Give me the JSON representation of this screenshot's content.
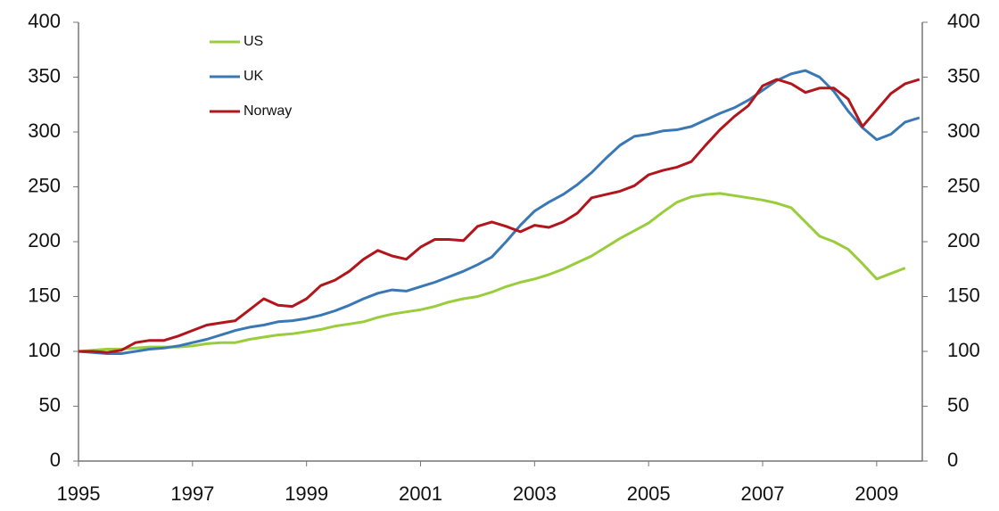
{
  "chart_data": {
    "type": "line",
    "x": [
      1995,
      1995.25,
      1995.5,
      1995.75,
      1996,
      1996.25,
      1996.5,
      1996.75,
      1997,
      1997.25,
      1997.5,
      1997.75,
      1998,
      1998.25,
      1998.5,
      1998.75,
      1999,
      1999.25,
      1999.5,
      1999.75,
      2000,
      2000.25,
      2000.5,
      2000.75,
      2001,
      2001.25,
      2001.5,
      2001.75,
      2002,
      2002.25,
      2002.5,
      2002.75,
      2003,
      2003.25,
      2003.5,
      2003.75,
      2004,
      2004.25,
      2004.5,
      2004.75,
      2005,
      2005.25,
      2005.5,
      2005.75,
      2006,
      2006.25,
      2006.5,
      2006.75,
      2007,
      2007.25,
      2007.5,
      2007.75,
      2008,
      2008.25,
      2008.5,
      2008.75,
      2009,
      2009.25,
      2009.5,
      2009.75
    ],
    "series": [
      {
        "name": "US",
        "color": "#9acd3c",
        "values": [
          100,
          101,
          102,
          102,
          103,
          104,
          104,
          104,
          105,
          107,
          108,
          108,
          111,
          113,
          115,
          116,
          118,
          120,
          123,
          125,
          127,
          131,
          134,
          136,
          138,
          141,
          145,
          148,
          150,
          154,
          159,
          163,
          166,
          170,
          175,
          181,
          187,
          195,
          203,
          210,
          217,
          227,
          236,
          241,
          243,
          244,
          242,
          240,
          238,
          235,
          231,
          218,
          205,
          200,
          193,
          180,
          166,
          171,
          176,
          null
        ]
      },
      {
        "name": "UK",
        "color": "#3a78b5",
        "values": [
          100,
          99,
          98,
          98,
          100,
          102,
          103,
          105,
          108,
          111,
          115,
          119,
          122,
          124,
          127,
          128,
          130,
          133,
          137,
          142,
          148,
          153,
          156,
          155,
          159,
          163,
          168,
          173,
          179,
          186,
          200,
          215,
          228,
          236,
          243,
          252,
          263,
          276,
          288,
          296,
          298,
          301,
          302,
          305,
          311,
          317,
          322,
          329,
          338,
          347,
          353,
          356,
          350,
          337,
          319,
          304,
          293,
          298,
          309,
          313
        ]
      },
      {
        "name": "Norway",
        "color": "#b0161c",
        "values": [
          100,
          100,
          99,
          101,
          108,
          110,
          110,
          114,
          119,
          124,
          126,
          128,
          138,
          148,
          142,
          141,
          148,
          160,
          165,
          173,
          184,
          192,
          187,
          184,
          195,
          202,
          202,
          201,
          214,
          218,
          214,
          209,
          215,
          213,
          218,
          226,
          240,
          243,
          246,
          251,
          261,
          265,
          268,
          273,
          288,
          302,
          314,
          324,
          342,
          348,
          344,
          336,
          340,
          340,
          330,
          305,
          320,
          335,
          344,
          348
        ]
      }
    ],
    "xlim": [
      1995,
      2009.8
    ],
    "xticks": [
      1995,
      1997,
      1999,
      2001,
      2003,
      2005,
      2007,
      2009
    ],
    "ylim": [
      0,
      400
    ],
    "yticks": [
      0,
      50,
      100,
      150,
      200,
      250,
      300,
      350,
      400
    ],
    "y2lim": [
      0,
      400
    ],
    "y2ticks": [
      0,
      50,
      100,
      150,
      200,
      250,
      300,
      350,
      400
    ],
    "legend": "upper left"
  }
}
